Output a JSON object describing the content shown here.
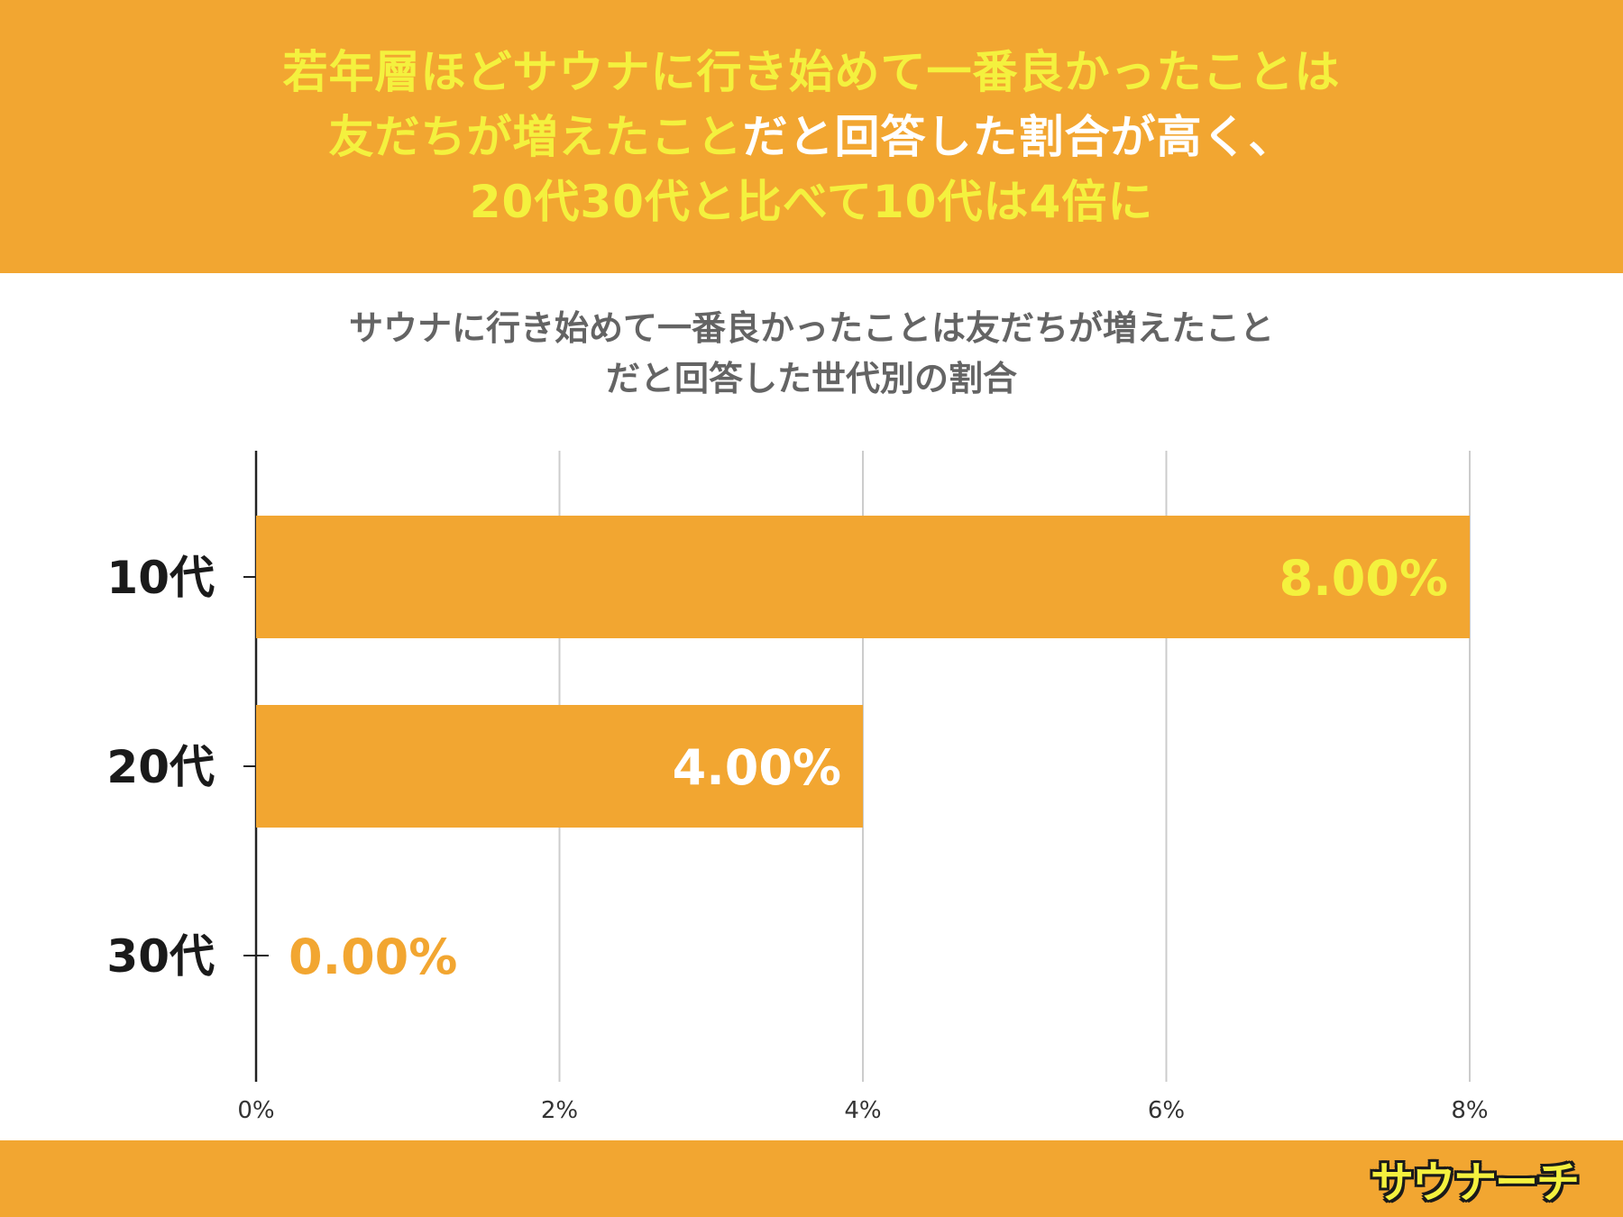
{
  "header": {
    "line1": "若年層ほどサウナに行き始めて一番良かったことは",
    "line2_highlight": "友だちが増えたこと",
    "line2_rest": "だと回答した割合が高く、",
    "line3": "20代30代と比べて10代は4倍に"
  },
  "logo": "サウナーチ",
  "colors": {
    "accent": "#f2a631",
    "highlight": "#f4f13e",
    "title_gray": "#646464",
    "grid": "#cccccc"
  },
  "chart_data": {
    "type": "bar",
    "orientation": "horizontal",
    "title": "サウナに行き始めて一番良かったことは友だちが増えたこと",
    "subtitle": "だと回答した世代別の割合",
    "categories": [
      "10代",
      "20代",
      "30代"
    ],
    "values": [
      8,
      4,
      0
    ],
    "data_labels": [
      "8.00%",
      "4.00%",
      "0.00%"
    ],
    "x_ticks": [
      "0%",
      "2%",
      "4%",
      "6%",
      "8%"
    ],
    "xlim": [
      0,
      8
    ],
    "grid": true,
    "bar_color": "#f2a631",
    "label_colors": [
      "#f4f13e",
      "#ffffff",
      "#f2a631"
    ]
  }
}
